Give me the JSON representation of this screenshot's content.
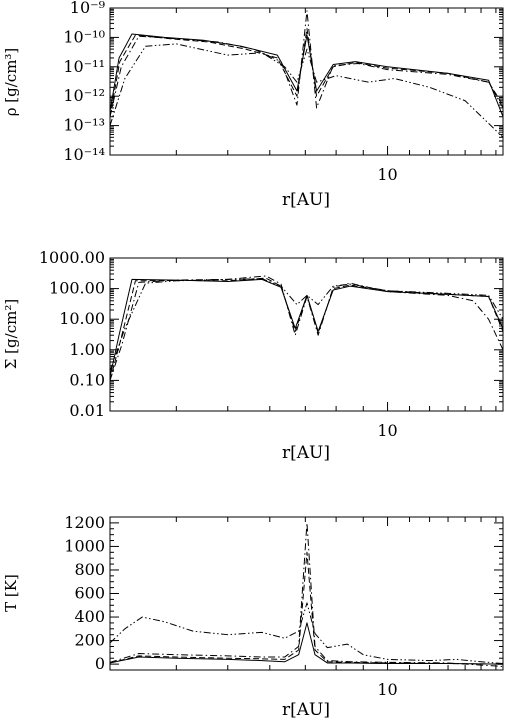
{
  "chart_data": [
    {
      "type": "line",
      "xlabel": "r[AU]",
      "ylabel": "ρ [g/cm³]",
      "xscale": "log",
      "yscale": "log",
      "xlim": [
        3.0,
        16.5
      ],
      "ylim": [
        1e-14,
        1e-09
      ],
      "x_tick_labels": [
        {
          "value": 10,
          "label": "10"
        }
      ],
      "y_tick_labels": [
        {
          "value": 1e-09,
          "label": "10⁻⁹"
        },
        {
          "value": 1e-10,
          "label": "10⁻¹⁰"
        },
        {
          "value": 1e-11,
          "label": "10⁻¹¹"
        },
        {
          "value": 1e-12,
          "label": "10⁻¹²"
        },
        {
          "value": 1e-13,
          "label": "10⁻¹³"
        },
        {
          "value": 1e-14,
          "label": "10⁻¹⁴"
        }
      ],
      "series": [
        {
          "dash": "solid",
          "points": [
            [
              3.0,
              3e-13
            ],
            [
              3.12,
              2e-11
            ],
            [
              3.3,
              1.3e-10
            ],
            [
              3.8,
              1e-10
            ],
            [
              4.5,
              8e-11
            ],
            [
              5.3,
              5e-11
            ],
            [
              6.2,
              2.5e-11
            ],
            [
              6.75,
              1.5e-12
            ],
            [
              7.05,
              1.2e-10
            ],
            [
              7.35,
              1.5e-12
            ],
            [
              7.9,
              1.2e-11
            ],
            [
              8.7,
              1.5e-11
            ],
            [
              10.0,
              1e-11
            ],
            [
              13.0,
              6e-12
            ],
            [
              15.5,
              3.5e-12
            ],
            [
              16.5,
              2e-13
            ]
          ]
        },
        {
          "dash": "dash",
          "points": [
            [
              3.0,
              2e-13
            ],
            [
              3.13,
              1.5e-11
            ],
            [
              3.35,
              1.2e-10
            ],
            [
              3.9,
              9e-11
            ],
            [
              4.6,
              7e-11
            ],
            [
              5.4,
              4e-11
            ],
            [
              6.2,
              2e-11
            ],
            [
              6.75,
              1e-12
            ],
            [
              7.05,
              2e-10
            ],
            [
              7.35,
              1e-12
            ],
            [
              7.9,
              1e-11
            ],
            [
              8.7,
              1.4e-11
            ],
            [
              10.0,
              9e-12
            ],
            [
              13.0,
              6e-12
            ],
            [
              15.5,
              3e-12
            ],
            [
              16.5,
              5e-13
            ]
          ]
        },
        {
          "dash": "dashdot",
          "points": [
            [
              3.0,
              2e-13
            ],
            [
              3.15,
              1e-11
            ],
            [
              3.4,
              1.1e-10
            ],
            [
              4.0,
              9e-11
            ],
            [
              4.8,
              7e-11
            ],
            [
              5.6,
              4e-11
            ],
            [
              6.3,
              1.5e-11
            ],
            [
              6.75,
              5e-13
            ],
            [
              7.05,
              8e-10
            ],
            [
              7.35,
              4e-13
            ],
            [
              7.9,
              1.1e-11
            ],
            [
              8.8,
              1.3e-11
            ],
            [
              10.0,
              8e-12
            ],
            [
              13.0,
              5.5e-12
            ],
            [
              15.5,
              3e-12
            ],
            [
              16.5,
              4e-13
            ]
          ]
        },
        {
          "dash": "dashdotdot",
          "points": [
            [
              3.0,
              1e-13
            ],
            [
              3.2,
              4e-12
            ],
            [
              3.5,
              5e-11
            ],
            [
              4.0,
              6e-11
            ],
            [
              5.0,
              2.5e-11
            ],
            [
              5.8,
              3e-11
            ],
            [
              6.4,
              1e-11
            ],
            [
              6.75,
              3e-12
            ],
            [
              7.05,
              4e-11
            ],
            [
              7.35,
              3e-12
            ],
            [
              8.0,
              5e-12
            ],
            [
              9.2,
              3e-12
            ],
            [
              10.3,
              4e-12
            ],
            [
              12.0,
              2e-12
            ],
            [
              14.0,
              7e-13
            ],
            [
              16.5,
              4e-14
            ]
          ]
        }
      ]
    },
    {
      "type": "line",
      "xlabel": "r[AU]",
      "ylabel": "Σ [g/cm²]",
      "xscale": "log",
      "yscale": "log",
      "xlim": [
        3.0,
        16.5
      ],
      "ylim": [
        0.01,
        1000
      ],
      "x_tick_labels": [
        {
          "value": 10,
          "label": "10"
        }
      ],
      "y_tick_labels": [
        {
          "value": 1000,
          "label": "1000.00"
        },
        {
          "value": 100,
          "label": "100.00"
        },
        {
          "value": 10,
          "label": "10.00"
        },
        {
          "value": 1,
          "label": "1.00"
        },
        {
          "value": 0.1,
          "label": "0.10"
        },
        {
          "value": 0.01,
          "label": "0.01"
        }
      ],
      "series": [
        {
          "dash": "solid",
          "points": [
            [
              3.0,
              0.13
            ],
            [
              3.12,
              3
            ],
            [
              3.3,
              200
            ],
            [
              4.0,
              190
            ],
            [
              5.0,
              170
            ],
            [
              5.8,
              200
            ],
            [
              6.3,
              110
            ],
            [
              6.7,
              5
            ],
            [
              7.05,
              60
            ],
            [
              7.4,
              4
            ],
            [
              7.9,
              90
            ],
            [
              8.5,
              120
            ],
            [
              10.0,
              80
            ],
            [
              13.0,
              65
            ],
            [
              15.5,
              55
            ],
            [
              16.5,
              5
            ]
          ]
        },
        {
          "dash": "dash",
          "points": [
            [
              3.0,
              0.1
            ],
            [
              3.14,
              2
            ],
            [
              3.35,
              180
            ],
            [
              4.0,
              185
            ],
            [
              5.0,
              180
            ],
            [
              5.9,
              220
            ],
            [
              6.3,
              120
            ],
            [
              6.7,
              4
            ],
            [
              7.05,
              60
            ],
            [
              7.4,
              3.5
            ],
            [
              7.9,
              100
            ],
            [
              8.5,
              130
            ],
            [
              10.0,
              85
            ],
            [
              13.0,
              65
            ],
            [
              15.5,
              55
            ],
            [
              16.5,
              4
            ]
          ]
        },
        {
          "dash": "dashdot",
          "points": [
            [
              3.0,
              0.1
            ],
            [
              3.16,
              1.5
            ],
            [
              3.4,
              160
            ],
            [
              4.0,
              190
            ],
            [
              5.0,
              200
            ],
            [
              5.9,
              260
            ],
            [
              6.3,
              140
            ],
            [
              6.7,
              3
            ],
            [
              7.05,
              55
            ],
            [
              7.4,
              3
            ],
            [
              7.9,
              110
            ],
            [
              8.5,
              150
            ],
            [
              10.0,
              80
            ],
            [
              13.0,
              60
            ],
            [
              14.5,
              40
            ],
            [
              15.5,
              10
            ],
            [
              16.5,
              1
            ]
          ]
        },
        {
          "dash": "dashdotdot",
          "points": [
            [
              3.0,
              0.2
            ],
            [
              3.2,
              5
            ],
            [
              3.5,
              150
            ],
            [
              4.0,
              180
            ],
            [
              5.0,
              200
            ],
            [
              5.8,
              210
            ],
            [
              6.3,
              120
            ],
            [
              6.75,
              30
            ],
            [
              7.05,
              60
            ],
            [
              7.4,
              30
            ],
            [
              7.9,
              120
            ],
            [
              8.5,
              140
            ],
            [
              10.0,
              85
            ],
            [
              13.0,
              70
            ],
            [
              15.5,
              60
            ],
            [
              16.5,
              10
            ]
          ]
        }
      ]
    },
    {
      "type": "line",
      "xlabel": "r[AU]",
      "ylabel": "T [K]",
      "xscale": "log",
      "yscale": "linear",
      "xlim": [
        3.0,
        16.5
      ],
      "ylim": [
        -50,
        1250
      ],
      "x_tick_labels": [
        {
          "value": 10,
          "label": "10"
        }
      ],
      "y_tick_labels": [
        {
          "value": 1200,
          "label": "1200"
        },
        {
          "value": 1000,
          "label": "1000"
        },
        {
          "value": 800,
          "label": "800"
        },
        {
          "value": 600,
          "label": "600"
        },
        {
          "value": 400,
          "label": "400"
        },
        {
          "value": 200,
          "label": "200"
        },
        {
          "value": 0,
          "label": "0"
        }
      ],
      "series": [
        {
          "dash": "solid",
          "points": [
            [
              3.0,
              10
            ],
            [
              3.4,
              60
            ],
            [
              4.0,
              50
            ],
            [
              5.0,
              40
            ],
            [
              5.8,
              30
            ],
            [
              6.4,
              20
            ],
            [
              6.8,
              80
            ],
            [
              7.05,
              350
            ],
            [
              7.3,
              80
            ],
            [
              7.7,
              10
            ],
            [
              8.5,
              10
            ],
            [
              10.0,
              5
            ],
            [
              13.0,
              5
            ],
            [
              16.5,
              0
            ]
          ]
        },
        {
          "dash": "dash",
          "points": [
            [
              3.0,
              10
            ],
            [
              3.4,
              70
            ],
            [
              4.0,
              60
            ],
            [
              5.0,
              50
            ],
            [
              5.8,
              45
            ],
            [
              6.4,
              40
            ],
            [
              6.8,
              120
            ],
            [
              7.05,
              950
            ],
            [
              7.3,
              120
            ],
            [
              7.7,
              20
            ],
            [
              8.5,
              15
            ],
            [
              10.0,
              10
            ],
            [
              13.0,
              5
            ],
            [
              16.5,
              0
            ]
          ]
        },
        {
          "dash": "dashdot",
          "points": [
            [
              3.0,
              15
            ],
            [
              3.4,
              90
            ],
            [
              4.0,
              80
            ],
            [
              5.0,
              70
            ],
            [
              5.8,
              60
            ],
            [
              6.4,
              60
            ],
            [
              6.8,
              150
            ],
            [
              7.05,
              1200
            ],
            [
              7.3,
              150
            ],
            [
              7.7,
              30
            ],
            [
              8.5,
              20
            ],
            [
              10.0,
              15
            ],
            [
              13.0,
              10
            ],
            [
              16.5,
              -20
            ]
          ]
        },
        {
          "dash": "dashdotdot",
          "points": [
            [
              3.0,
              180
            ],
            [
              3.2,
              300
            ],
            [
              3.45,
              400
            ],
            [
              3.8,
              360
            ],
            [
              4.3,
              280
            ],
            [
              5.0,
              250
            ],
            [
              5.8,
              270
            ],
            [
              6.4,
              220
            ],
            [
              6.8,
              280
            ],
            [
              7.05,
              520
            ],
            [
              7.3,
              260
            ],
            [
              7.7,
              140
            ],
            [
              8.4,
              170
            ],
            [
              9.0,
              80
            ],
            [
              10.0,
              40
            ],
            [
              12.0,
              30
            ],
            [
              13.5,
              40
            ],
            [
              15.0,
              20
            ],
            [
              16.5,
              5
            ]
          ]
        }
      ]
    }
  ]
}
